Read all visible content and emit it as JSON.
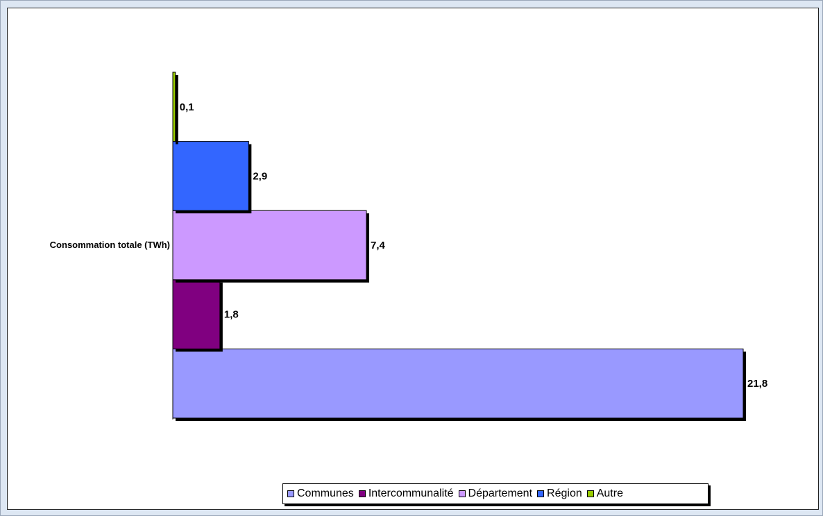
{
  "chart_data": {
    "type": "bar",
    "orientation": "horizontal",
    "categories": [
      "Consommation totale (TWh)"
    ],
    "series": [
      {
        "name": "Communes",
        "values": [
          21.8
        ],
        "label": "21,8",
        "color": "#9999ff"
      },
      {
        "name": "Intercommunalité",
        "values": [
          1.8
        ],
        "label": "1,8",
        "color": "#800080"
      },
      {
        "name": "Département",
        "values": [
          7.4
        ],
        "label": "7,4",
        "color": "#cc99ff"
      },
      {
        "name": "Région",
        "values": [
          2.9
        ],
        "label": "2,9",
        "color": "#3366ff"
      },
      {
        "name": "Autre",
        "values": [
          0.1
        ],
        "label": "0,1",
        "color": "#99cc00"
      }
    ],
    "title": "",
    "xlabel": "",
    "ylabel": "",
    "xlim": [
      0,
      21.8
    ],
    "grid": false,
    "legend_position": "bottom"
  }
}
